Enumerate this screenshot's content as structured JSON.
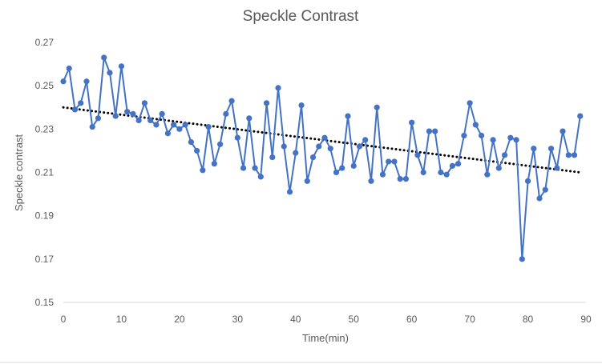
{
  "chart_data": {
    "type": "line",
    "title": "Speckle Contrast",
    "xlabel": "Time(min)",
    "ylabel": "Speckle contrast",
    "xlim": [
      0,
      90
    ],
    "ylim": [
      0.15,
      0.27
    ],
    "x_ticks": [
      "0",
      "10",
      "20",
      "30",
      "40",
      "50",
      "60",
      "70",
      "80",
      "90"
    ],
    "y_ticks": [
      "0.15",
      "0.17",
      "0.19",
      "0.21",
      "0.23",
      "0.25",
      "0.27"
    ],
    "grid": false,
    "legend": "none",
    "series": [
      {
        "marker": "circle",
        "color": "#4472c4",
        "x": [
          0,
          1,
          2,
          3,
          4,
          5,
          6,
          7,
          8,
          9,
          10,
          11,
          12,
          13,
          14,
          15,
          16,
          17,
          18,
          19,
          20,
          21,
          22,
          23,
          24,
          25,
          26,
          27,
          28,
          29,
          30,
          31,
          32,
          33,
          34,
          35,
          36,
          37,
          38,
          39,
          40,
          41,
          42,
          43,
          44,
          45,
          46,
          47,
          48,
          49,
          50,
          51,
          52,
          53,
          54,
          55,
          56,
          57,
          58,
          59,
          60,
          61,
          62,
          63,
          64,
          65,
          66,
          67,
          68,
          69,
          70,
          71,
          72,
          73,
          74,
          75,
          76,
          77,
          78,
          79,
          80,
          81,
          82,
          83,
          84,
          85,
          86,
          87,
          88,
          89
        ],
        "values": [
          0.252,
          0.258,
          0.239,
          0.242,
          0.252,
          0.231,
          0.235,
          0.263,
          0.256,
          0.236,
          0.259,
          0.238,
          0.237,
          0.234,
          0.242,
          0.234,
          0.232,
          0.237,
          0.228,
          0.232,
          0.23,
          0.232,
          0.224,
          0.22,
          0.211,
          0.231,
          0.214,
          0.223,
          0.237,
          0.243,
          0.226,
          0.212,
          0.235,
          0.212,
          0.208,
          0.242,
          0.217,
          0.249,
          0.222,
          0.201,
          0.219,
          0.241,
          0.206,
          0.217,
          0.222,
          0.226,
          0.221,
          0.21,
          0.212,
          0.236,
          0.213,
          0.222,
          0.225,
          0.206,
          0.24,
          0.209,
          0.215,
          0.215,
          0.207,
          0.207,
          0.233,
          0.218,
          0.21,
          0.229,
          0.229,
          0.21,
          0.209,
          0.213,
          0.214,
          0.227,
          0.242,
          0.232,
          0.227,
          0.209,
          0.225,
          0.212,
          0.218,
          0.226,
          0.225,
          0.17,
          0.206,
          0.221,
          0.198,
          0.202,
          0.221,
          0.212,
          0.229,
          0.218,
          0.218,
          0.236
        ]
      }
    ],
    "trendline": {
      "style": "dotted",
      "color": "#000000",
      "x": [
        0,
        89
      ],
      "values": [
        0.24,
        0.21
      ]
    }
  }
}
